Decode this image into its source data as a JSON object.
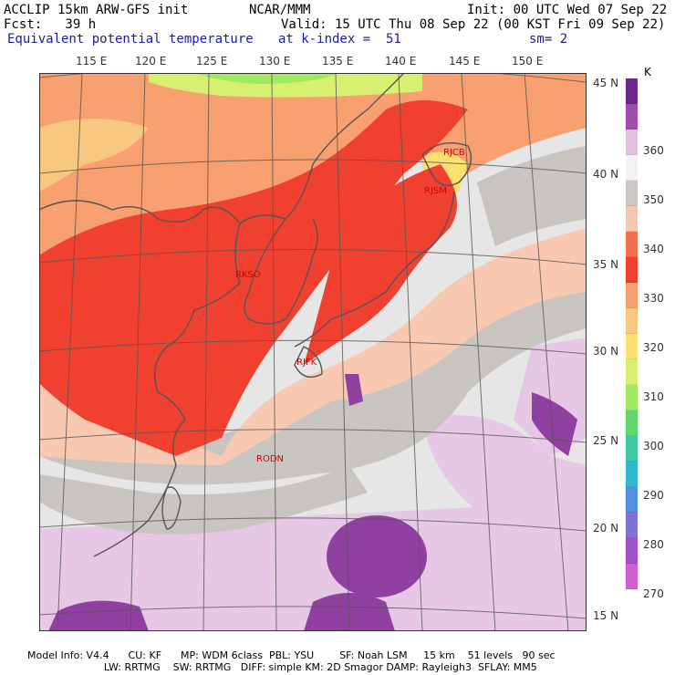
{
  "header": {
    "line1_left": "ACCLIP 15km ARW-GFS init",
    "line1_center": "NCAR/MMM",
    "line1_right": "Init: 00 UTC Wed 07 Sep 22",
    "line2_left": "Fcst:   39 h",
    "line2_right": "Valid: 15 UTC Thu 08 Sep 22 (00 KST Fri 09 Sep 22)",
    "line3_left": "Equivalent potential temperature",
    "line3_center": "at k-index =  51",
    "line3_right": "sm= 2"
  },
  "map": {
    "lon_labels": [
      "115 E",
      "120 E",
      "125 E",
      "130 E",
      "135 E",
      "140 E",
      "145 E",
      "150 E"
    ],
    "lat_labels": [
      "45 N",
      "40 N",
      "35 N",
      "30 N",
      "25 N",
      "20 N",
      "15 N"
    ],
    "stations": [
      "RJCB",
      "RJSM",
      "RKSO",
      "RJFK",
      "RODN"
    ],
    "colors": {
      "c260": "#e070d8",
      "c270": "#a050d0",
      "c280": "#7070e0",
      "c290": "#30c0c0",
      "c300": "#40d060",
      "c310": "#f0e870",
      "c320": "#f8c070",
      "c330": "#f46040",
      "c340": "#f8c8b0",
      "c350": "#c8c4c0",
      "c355": "#e6e6e6",
      "c360": "#e6c8e6",
      "c370": "#9040a0"
    }
  },
  "colorbar": {
    "unit": "K",
    "ticks": [
      "360",
      "350",
      "340",
      "330",
      "320",
      "310",
      "300",
      "290",
      "280",
      "270"
    ],
    "segments": [
      "#6a2a8a",
      "#a04cb0",
      "#e0c0e0",
      "#f2f2f2",
      "#cbc6c4",
      "#f4c8b0",
      "#f07050",
      "#f04030",
      "#f6a070",
      "#f8c880",
      "#fae070",
      "#d8f070",
      "#a0e860",
      "#60d870",
      "#40c8a0",
      "#30b8d0",
      "#5090e0",
      "#8070d8",
      "#a050c8",
      "#d060d0"
    ]
  },
  "footer": {
    "line1": "Model Info: V4.4      CU: KF      MP: WDM 6class  PBL: YSU        SF: Noah LSM     15 km    51 levels   90 sec",
    "line2": "                        LW: RRTMG    SW: RRTMG   DIFF: simple KM: 2D Smagor DAMP: Rayleigh3  SFLAY: MM5"
  }
}
